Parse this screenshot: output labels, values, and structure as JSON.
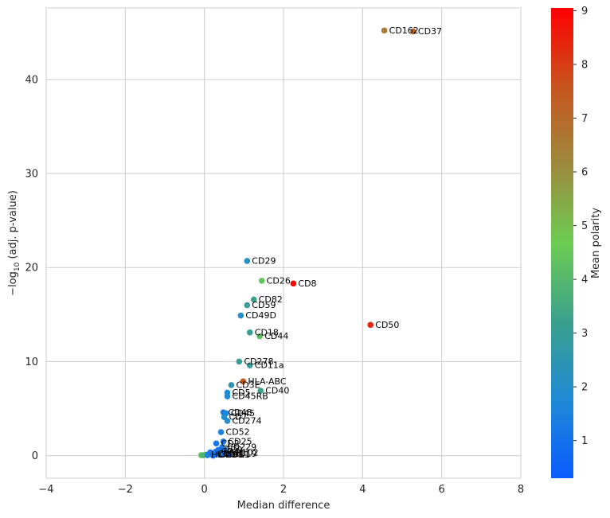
{
  "chart_data": {
    "type": "scatter",
    "xlabel": "Median difference",
    "ylabel_prefix": "−log",
    "ylabel_sub": "10",
    "ylabel_suffix": " (adj. p-value)",
    "xlim": [
      -4,
      8
    ],
    "ylim": [
      -2.4,
      47.6
    ],
    "xticks": [
      -4,
      -2,
      0,
      2,
      4,
      6,
      8
    ],
    "yticks": [
      0,
      10,
      20,
      30,
      40
    ],
    "grid": true,
    "colorbar": {
      "label": "Mean polarity",
      "min": 0.3,
      "max": 9.05,
      "ticks": [
        1,
        2,
        3,
        4,
        5,
        6,
        7,
        8,
        9
      ],
      "colors": [
        "#0a5cff",
        "#1f8ad6",
        "#3aa08c",
        "#6ccc52",
        "#9d8a3c",
        "#c8541e",
        "#ff0000"
      ]
    },
    "points": [
      {
        "label": "CD162",
        "x": 4.55,
        "y": 45.2,
        "c": 6.6
      },
      {
        "label": "CD37",
        "x": 5.28,
        "y": 45.1,
        "c": 7.0
      },
      {
        "label": "CD29",
        "x": 1.08,
        "y": 20.7,
        "c": 2.1
      },
      {
        "label": "CD26",
        "x": 1.45,
        "y": 18.6,
        "c": 4.4
      },
      {
        "label": "CD8",
        "x": 2.25,
        "y": 18.3,
        "c": 9.0
      },
      {
        "label": "CD82",
        "x": 1.25,
        "y": 16.6,
        "c": 3.2
      },
      {
        "label": "CD59",
        "x": 1.08,
        "y": 16.0,
        "c": 3.0
      },
      {
        "label": "CD49D",
        "x": 0.92,
        "y": 14.9,
        "c": 2.0
      },
      {
        "label": "CD50",
        "x": 4.2,
        "y": 13.9,
        "c": 8.4
      },
      {
        "label": "CD18",
        "x": 1.15,
        "y": 13.1,
        "c": 3.1
      },
      {
        "label": "CD44",
        "x": 1.4,
        "y": 12.7,
        "c": 4.2
      },
      {
        "label": "CD278",
        "x": 0.88,
        "y": 10.0,
        "c": 3.0
      },
      {
        "label": "CD11a",
        "x": 1.15,
        "y": 9.6,
        "c": 3.0
      },
      {
        "label": "HLA-ABC",
        "x": 0.98,
        "y": 7.9,
        "c": 7.4
      },
      {
        "label": "CD3E",
        "x": 0.68,
        "y": 7.5,
        "c": 2.5
      },
      {
        "label": "CD40",
        "x": 1.42,
        "y": 6.9,
        "c": 3.3
      },
      {
        "label": "CD5",
        "x": 0.58,
        "y": 6.7,
        "c": 1.8
      },
      {
        "label": "CD45RB",
        "x": 0.58,
        "y": 6.3,
        "c": 1.8
      },
      {
        "label": "CD48",
        "x": 0.48,
        "y": 4.6,
        "c": 1.2
      },
      {
        "label": "CD45",
        "x": 0.55,
        "y": 4.5,
        "c": 1.7
      },
      {
        "label": "CD7",
        "x": 0.5,
        "y": 4.1,
        "c": 2.0
      },
      {
        "label": "CD274",
        "x": 0.58,
        "y": 3.7,
        "c": 2.0
      },
      {
        "label": "CD52",
        "x": 0.42,
        "y": 2.5,
        "c": 1.5
      },
      {
        "label": "CD25",
        "x": 0.48,
        "y": 1.5,
        "c": 1.2
      },
      {
        "label": "CD2",
        "x": 0.3,
        "y": 1.3,
        "c": 1.1
      },
      {
        "label": "CD229",
        "x": 0.45,
        "y": 0.9,
        "c": 1.3
      },
      {
        "label": "CD9",
        "x": 0.38,
        "y": 0.6,
        "c": 1.0
      },
      {
        "label": "CD4",
        "x": 0.3,
        "y": 0.45,
        "c": 1.2
      },
      {
        "label": "CD102",
        "x": 0.5,
        "y": 0.3,
        "c": 1.0
      },
      {
        "label": "HLA-DR",
        "x": 0.05,
        "y": 0.1,
        "c": 2.6
      },
      {
        "label": "CD1",
        "x": 0.2,
        "y": 0.2,
        "c": 0.8
      },
      {
        "label": "CD3",
        "x": 0.25,
        "y": 0.1,
        "c": 0.8
      },
      {
        "label": "CD6",
        "x": 0.35,
        "y": 0.15,
        "c": 1.0
      },
      {
        "label": "CD11",
        "x": 0.42,
        "y": 0.1,
        "c": 1.0
      },
      {
        "label": "CD19",
        "x": 0.6,
        "y": 0.2,
        "c": 1.1
      },
      {
        "label": "",
        "x": -0.08,
        "y": 0.05,
        "c": 4.3
      },
      {
        "label": "",
        "x": -0.02,
        "y": 0.05,
        "c": 3.9
      },
      {
        "label": "",
        "x": 0.08,
        "y": 0.05,
        "c": 1.5
      },
      {
        "label": "",
        "x": 0.15,
        "y": 0.35,
        "c": 1.2
      },
      {
        "label": "",
        "x": 0.22,
        "y": 0.0,
        "c": 0.9
      },
      {
        "label": "",
        "x": 0.28,
        "y": 0.4,
        "c": 1.2
      },
      {
        "label": "",
        "x": 0.35,
        "y": 0.6,
        "c": 1.0
      },
      {
        "label": "",
        "x": 0.42,
        "y": 0.3,
        "c": 1.3
      },
      {
        "label": "",
        "x": 0.55,
        "y": 0.5,
        "c": 1.4
      },
      {
        "label": "",
        "x": 0.62,
        "y": 0.1,
        "c": 1.1
      }
    ]
  }
}
